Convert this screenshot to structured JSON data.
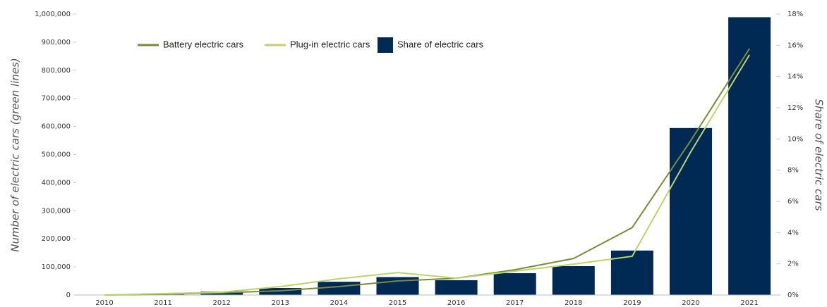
{
  "chart_data": {
    "type": "bar_line",
    "y_label": "Number of electric cars (green lines)",
    "y2_label": "Share of electric cars",
    "categories": [
      "2010",
      "2011",
      "2012",
      "2013",
      "2014",
      "2015",
      "2016",
      "2017",
      "2018",
      "2019",
      "2020",
      "2021"
    ],
    "series": [
      {
        "name": "Battery electric cars",
        "type": "line",
        "color": "#7a8a3c",
        "values": [
          0,
          3000,
          8000,
          15000,
          30000,
          50000,
          60000,
          90000,
          130000,
          240000,
          550000,
          877000
        ]
      },
      {
        "name": "Plug-in electric cars",
        "type": "line",
        "color": "#b8d46a",
        "values": [
          0,
          5000,
          10000,
          30000,
          58000,
          80000,
          60000,
          85000,
          110000,
          138000,
          510000,
          855000
        ]
      },
      {
        "name": "Share of electric cars",
        "type": "bar",
        "axis": "y2",
        "color": "#002a54",
        "values": [
          0,
          0.1,
          0.22,
          0.45,
          0.85,
          1.15,
          0.95,
          1.4,
          1.85,
          2.85,
          10.7,
          17.8
        ]
      }
    ],
    "ylim": [
      0,
      1000000
    ],
    "yticks": [
      0,
      {
        "value": 100000,
        "label": "100,000"
      },
      {
        "value": 200000,
        "label": "200,000"
      },
      {
        "value": 300000,
        "label": "300,000"
      },
      {
        "value": 400000,
        "label": "400,000"
      },
      {
        "value": 500000,
        "label": "500,000"
      },
      {
        "value": 600000,
        "label": "600,000"
      },
      {
        "value": 700000,
        "label": "700,000"
      },
      {
        "value": 800000,
        "label": "800,000"
      },
      {
        "value": 900000,
        "label": "900,000"
      },
      {
        "value": 1000000,
        "label": "1,000,000"
      }
    ],
    "y2lim": [
      0,
      18
    ],
    "y2ticks": [
      {
        "value": 0,
        "label": "0%"
      },
      {
        "value": 2,
        "label": "2%"
      },
      {
        "value": 4,
        "label": "4%"
      },
      {
        "value": 6,
        "label": "6%"
      },
      {
        "value": 8,
        "label": "8%"
      },
      {
        "value": 10,
        "label": "10%"
      },
      {
        "value": 12,
        "label": "12%"
      },
      {
        "value": 14,
        "label": "14%"
      },
      {
        "value": 16,
        "label": "16%"
      },
      {
        "value": 18,
        "label": "18%"
      }
    ],
    "legend": "top-left"
  }
}
